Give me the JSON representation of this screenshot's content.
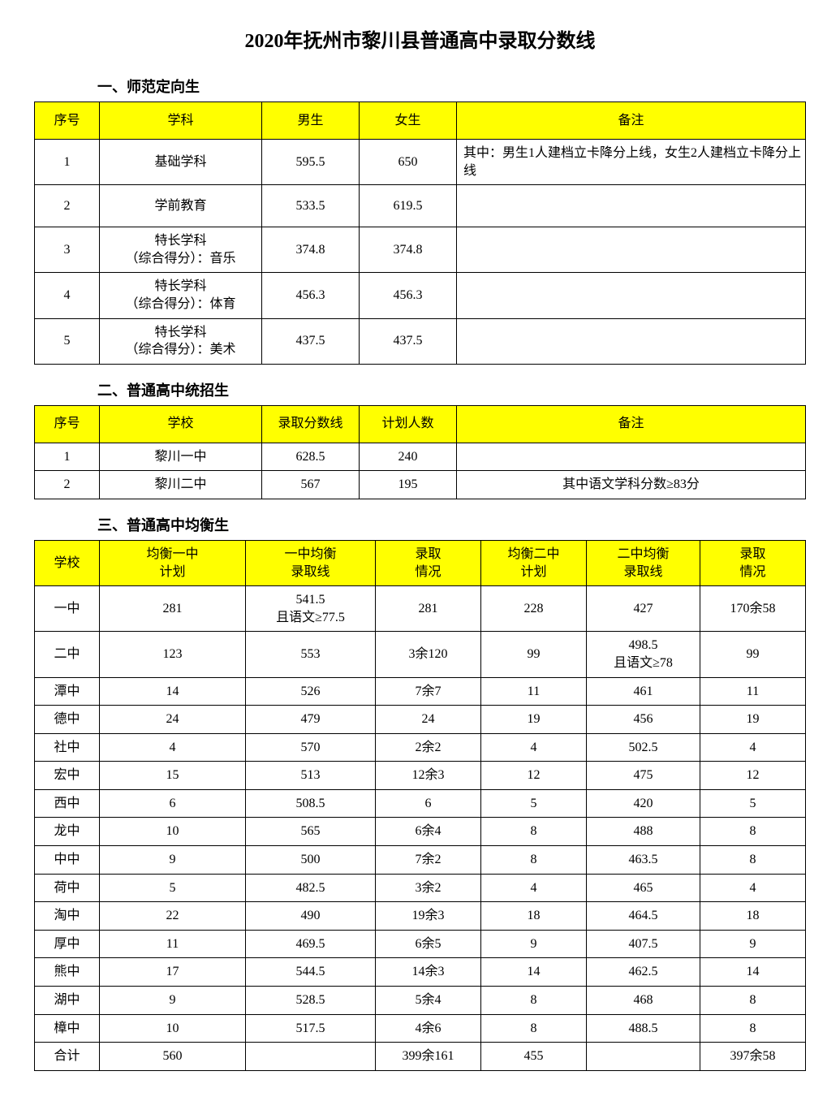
{
  "title": "2020年抚州市黎川县普通高中录取分数线",
  "colors": {
    "header_bg": "#ffff00",
    "border": "#000000",
    "text": "#000000",
    "background": "#ffffff"
  },
  "section1": {
    "heading": "一、师范定向生",
    "columns": [
      "序号",
      "学科",
      "男生",
      "女生",
      "备注"
    ],
    "rows": [
      {
        "no": "1",
        "subject": "基础学科",
        "male": "595.5",
        "female": "650",
        "remark": "其中：男生1人建档立卡降分上线，女生2人建档立卡降分上线"
      },
      {
        "no": "2",
        "subject": "学前教育",
        "male": "533.5",
        "female": "619.5",
        "remark": ""
      },
      {
        "no": "3",
        "subject": "特长学科\n（综合得分）：音乐",
        "male": "374.8",
        "female": "374.8",
        "remark": ""
      },
      {
        "no": "4",
        "subject": "特长学科\n（综合得分）：体育",
        "male": "456.3",
        "female": "456.3",
        "remark": ""
      },
      {
        "no": "5",
        "subject": "特长学科\n（综合得分）：美术",
        "male": "437.5",
        "female": "437.5",
        "remark": ""
      }
    ]
  },
  "section2": {
    "heading": "二、普通高中统招生",
    "columns": [
      "序号",
      "学校",
      "录取分数线",
      "计划人数",
      "备注"
    ],
    "rows": [
      {
        "no": "1",
        "school": "黎川一中",
        "score": "628.5",
        "plan": "240",
        "remark": ""
      },
      {
        "no": "2",
        "school": "黎川二中",
        "score": "567",
        "plan": "195",
        "remark": "其中语文学科分数≥83分"
      }
    ]
  },
  "section3": {
    "heading": "三、普通高中均衡生",
    "columns": [
      "学校",
      "均衡一中\n计划",
      "一中均衡\n录取线",
      "录取\n情况",
      "均衡二中\n计划",
      "二中均衡\n录取线",
      "录取\n情况"
    ],
    "rows": [
      {
        "school": "一中",
        "plan1": "281",
        "line1": "541.5\n且语文≥77.5",
        "res1": "281",
        "plan2": "228",
        "line2": "427",
        "res2": "170余58",
        "tall": true
      },
      {
        "school": "二中",
        "plan1": "123",
        "line1": "553",
        "res1": "3余120",
        "plan2": "99",
        "line2": "498.5\n且语文≥78",
        "res2": "99",
        "tall": true
      },
      {
        "school": "潭中",
        "plan1": "14",
        "line1": "526",
        "res1": "7余7",
        "plan2": "11",
        "line2": "461",
        "res2": "11"
      },
      {
        "school": "德中",
        "plan1": "24",
        "line1": "479",
        "res1": "24",
        "plan2": "19",
        "line2": "456",
        "res2": "19"
      },
      {
        "school": "社中",
        "plan1": "4",
        "line1": "570",
        "res1": "2余2",
        "plan2": "4",
        "line2": "502.5",
        "res2": "4"
      },
      {
        "school": "宏中",
        "plan1": "15",
        "line1": "513",
        "res1": "12余3",
        "plan2": "12",
        "line2": "475",
        "res2": "12"
      },
      {
        "school": "西中",
        "plan1": "6",
        "line1": "508.5",
        "res1": "6",
        "plan2": "5",
        "line2": "420",
        "res2": "5"
      },
      {
        "school": "龙中",
        "plan1": "10",
        "line1": "565",
        "res1": "6余4",
        "plan2": "8",
        "line2": "488",
        "res2": "8"
      },
      {
        "school": "中中",
        "plan1": "9",
        "line1": "500",
        "res1": "7余2",
        "plan2": "8",
        "line2": "463.5",
        "res2": "8"
      },
      {
        "school": "荷中",
        "plan1": "5",
        "line1": "482.5",
        "res1": "3余2",
        "plan2": "4",
        "line2": "465",
        "res2": "4"
      },
      {
        "school": "淘中",
        "plan1": "22",
        "line1": "490",
        "res1": "19余3",
        "plan2": "18",
        "line2": "464.5",
        "res2": "18"
      },
      {
        "school": "厚中",
        "plan1": "11",
        "line1": "469.5",
        "res1": "6余5",
        "plan2": "9",
        "line2": "407.5",
        "res2": "9"
      },
      {
        "school": "熊中",
        "plan1": "17",
        "line1": "544.5",
        "res1": "14余3",
        "plan2": "14",
        "line2": "462.5",
        "res2": "14"
      },
      {
        "school": "湖中",
        "plan1": "9",
        "line1": "528.5",
        "res1": "5余4",
        "plan2": "8",
        "line2": "468",
        "res2": "8"
      },
      {
        "school": "樟中",
        "plan1": "10",
        "line1": "517.5",
        "res1": "4余6",
        "plan2": "8",
        "line2": "488.5",
        "res2": "8"
      },
      {
        "school": "合计",
        "plan1": "560",
        "line1": "",
        "res1": "399余161",
        "plan2": "455",
        "line2": "",
        "res2": "397余58"
      }
    ]
  }
}
